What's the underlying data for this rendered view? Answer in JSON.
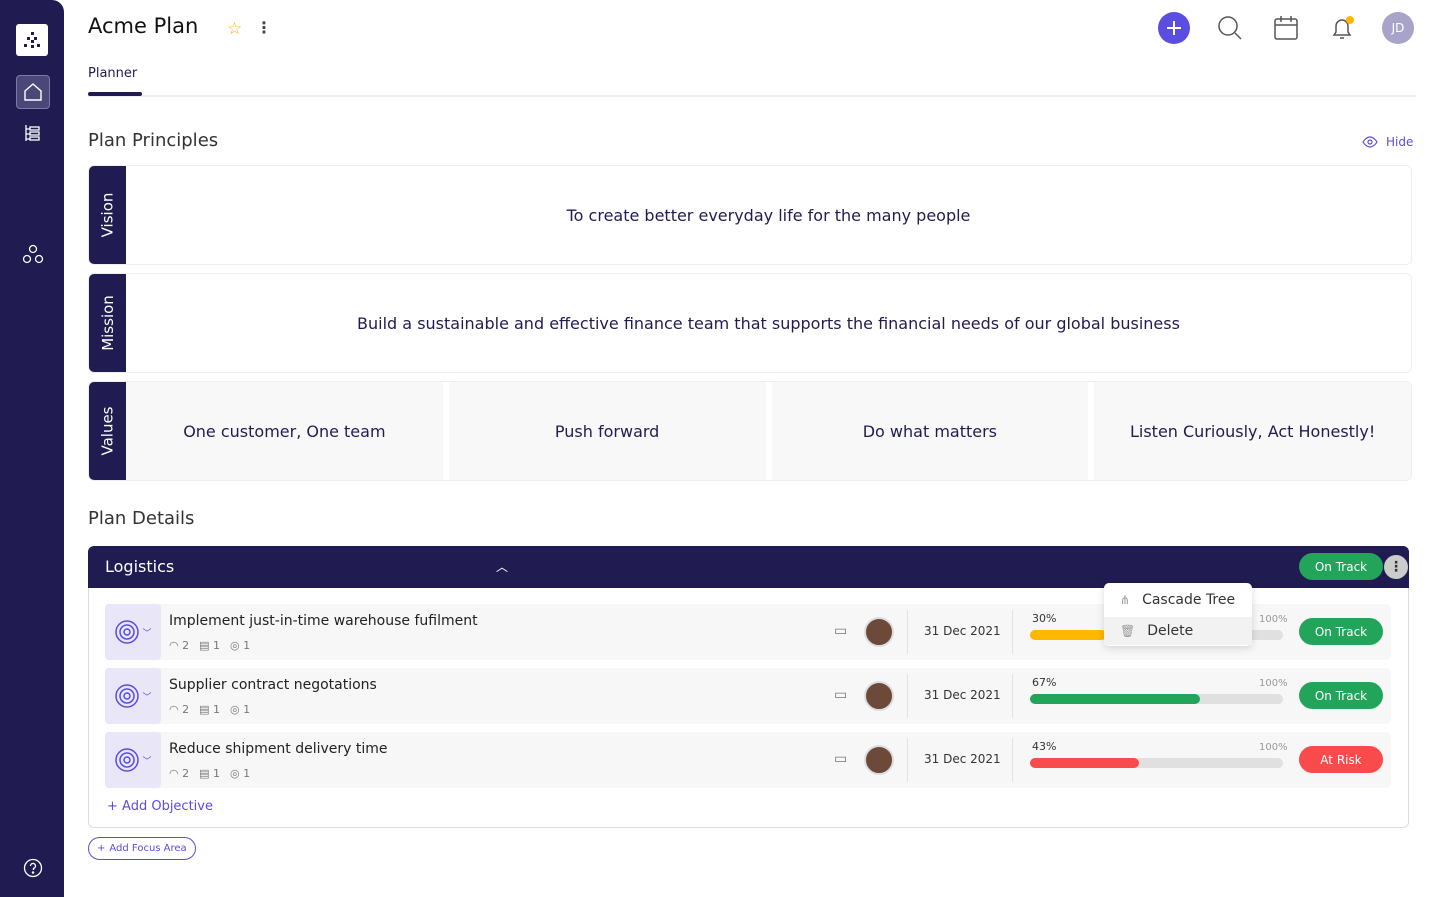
{
  "app": {
    "title": "Acme Plan",
    "tab": "Planner",
    "avatar_initials": "JD"
  },
  "icons": {
    "logo": "pyramid-dots-logo",
    "home": "home-icon",
    "tree": "hierarchy-list-icon",
    "network": "network-icon",
    "help": "help-icon",
    "add": "plus-circle-icon",
    "search": "search-icon",
    "calendar": "calendar-icon",
    "bell": "bell-icon",
    "star": "star-icon"
  },
  "principles": {
    "heading": "Plan Principles",
    "hide_label": "Hide",
    "vision_label": "Vision",
    "vision": "To create better everyday life for the many people",
    "mission_label": "Mission",
    "mission": "Build a sustainable and effective finance team that supports the financial needs of our global business",
    "values_label": "Values",
    "values": [
      "One customer, One team",
      "Push forward",
      "Do what matters",
      "Listen Curiously, Act Honestly!"
    ]
  },
  "details": {
    "heading": "Plan Details",
    "focus_area": {
      "name": "Logistics",
      "status": "On Track",
      "menu": [
        "Cascade Tree",
        "Delete"
      ],
      "objectives": [
        {
          "title": "Implement just-in-time warehouse fufilment",
          "krs": "2",
          "docs": "1",
          "links": "1",
          "date": "31 Dec 2021",
          "progress": 30,
          "progress_label": "30%",
          "max_label": "100%",
          "status": "On Track",
          "color": "#ffb800"
        },
        {
          "title": "Supplier contract negotations",
          "krs": "2",
          "docs": "1",
          "links": "1",
          "date": "31 Dec 2021",
          "progress": 67,
          "progress_label": "67%",
          "max_label": "100%",
          "status": "On Track",
          "color": "#22a55a"
        },
        {
          "title": "Reduce shipment delivery time",
          "krs": "2",
          "docs": "1",
          "links": "1",
          "date": "31 Dec 2021",
          "progress": 43,
          "progress_label": "43%",
          "max_label": "100%",
          "status": "At Risk",
          "color": "#f94b4b"
        }
      ],
      "add_objective": "Add Objective"
    },
    "add_focus_area": "Add Focus Area"
  },
  "colors": {
    "brand": "#201c52",
    "accent": "#5b4de0",
    "on_track": "#22a55a",
    "at_risk": "#f94b4b",
    "warning": "#ffb800"
  }
}
